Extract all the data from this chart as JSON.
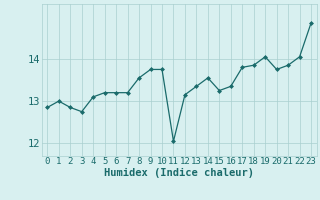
{
  "x": [
    0,
    1,
    2,
    3,
    4,
    5,
    6,
    7,
    8,
    9,
    10,
    11,
    12,
    13,
    14,
    15,
    16,
    17,
    18,
    19,
    20,
    21,
    22,
    23
  ],
  "y": [
    12.85,
    13.0,
    12.85,
    12.75,
    13.1,
    13.2,
    13.2,
    13.2,
    13.55,
    13.75,
    13.75,
    12.05,
    13.15,
    13.35,
    13.55,
    13.25,
    13.35,
    13.8,
    13.85,
    14.05,
    13.75,
    13.85,
    14.05,
    14.85
  ],
  "xlabel": "Humidex (Indice chaleur)",
  "bg_color": "#d8f0f0",
  "line_color": "#1a6b6b",
  "marker_color": "#1a6b6b",
  "grid_color": "#aacfcf",
  "label_color": "#1a6b6b",
  "xlim": [
    -0.5,
    23.5
  ],
  "ylim": [
    11.7,
    15.3
  ],
  "yticks": [
    12,
    13,
    14
  ],
  "xticks": [
    0,
    1,
    2,
    3,
    4,
    5,
    6,
    7,
    8,
    9,
    10,
    11,
    12,
    13,
    14,
    15,
    16,
    17,
    18,
    19,
    20,
    21,
    22,
    23
  ],
  "tick_fontsize": 6.5,
  "xlabel_fontsize": 7.5
}
